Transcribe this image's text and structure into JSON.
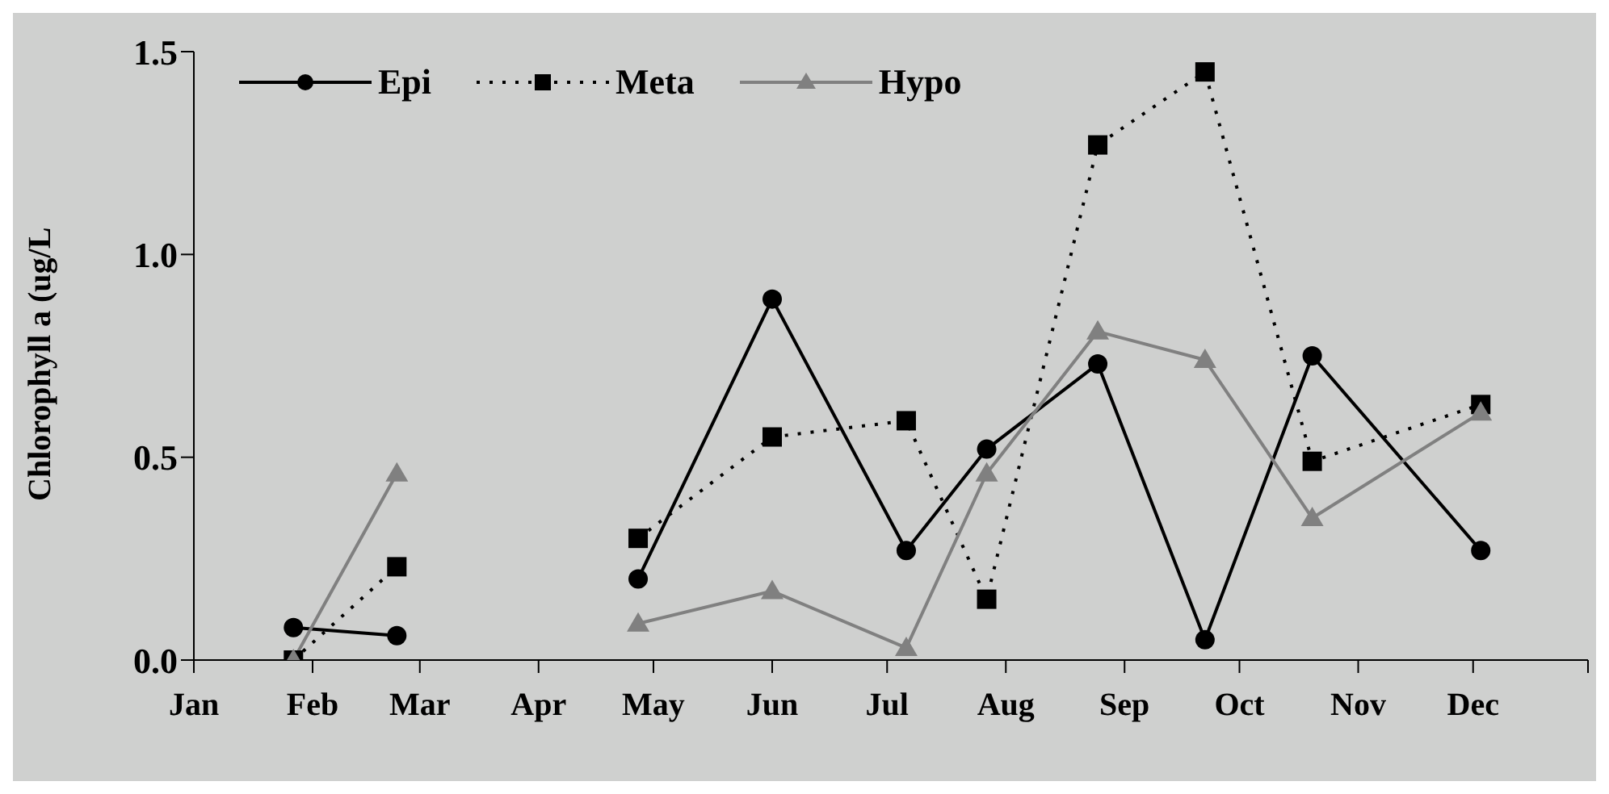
{
  "chart_data": {
    "type": "line",
    "ylabel": "Chlorophyll a (ug/L",
    "x": [
      "--01-27",
      "--02-23",
      "--04-01",
      "--04-27",
      "--06-01",
      "--07-06",
      "--07-27",
      "--08-25",
      "--09-22",
      "--10-20",
      "--12-03"
    ],
    "series": [
      {
        "name": "Epi",
        "color": "#000000",
        "marker": "circle",
        "line_style": "solid",
        "values": [
          0.08,
          0.06,
          null,
          0.2,
          0.89,
          0.27,
          0.52,
          0.73,
          0.05,
          0.75,
          0.27
        ]
      },
      {
        "name": "Meta",
        "color": "#000000",
        "marker": "square",
        "line_style": "dotted",
        "values": [
          0.0,
          0.23,
          null,
          0.3,
          0.55,
          0.59,
          0.15,
          1.27,
          1.45,
          0.49,
          0.63
        ]
      },
      {
        "name": "Hypo",
        "color": "#808080",
        "marker": "triangle",
        "line_style": "solid",
        "values": [
          0.0,
          0.46,
          null,
          0.09,
          0.17,
          0.03,
          0.46,
          0.81,
          0.74,
          0.35,
          0.61
        ]
      }
    ],
    "xlim": [
      "--01-01",
      "--12-31"
    ],
    "xticks": [
      {
        "value": "--01-01",
        "label": "Jan"
      },
      {
        "value": "--02-01",
        "label": "Feb"
      },
      {
        "value": "--03-01",
        "label": "Mar"
      },
      {
        "value": "--04-01",
        "label": "Apr"
      },
      {
        "value": "--05-01",
        "label": "May"
      },
      {
        "value": "--06-01",
        "label": "Jun"
      },
      {
        "value": "--07-01",
        "label": "Jul"
      },
      {
        "value": "--08-01",
        "label": "Aug"
      },
      {
        "value": "--09-01",
        "label": "Sep"
      },
      {
        "value": "--10-01",
        "label": "Oct"
      },
      {
        "value": "--11-01",
        "label": "Nov"
      },
      {
        "value": "--12-01",
        "label": "Dec"
      },
      {
        "value": "--12-31",
        "label": null
      }
    ],
    "ylim": [
      0,
      1.5
    ],
    "yticks": [
      {
        "value": 0,
        "label": "0.0"
      },
      {
        "value": 0.5,
        "label": "0.5"
      },
      {
        "value": 1,
        "label": "1.0"
      },
      {
        "value": 1.5,
        "label": "1.5"
      }
    ],
    "grid": false,
    "legend": "top left"
  }
}
